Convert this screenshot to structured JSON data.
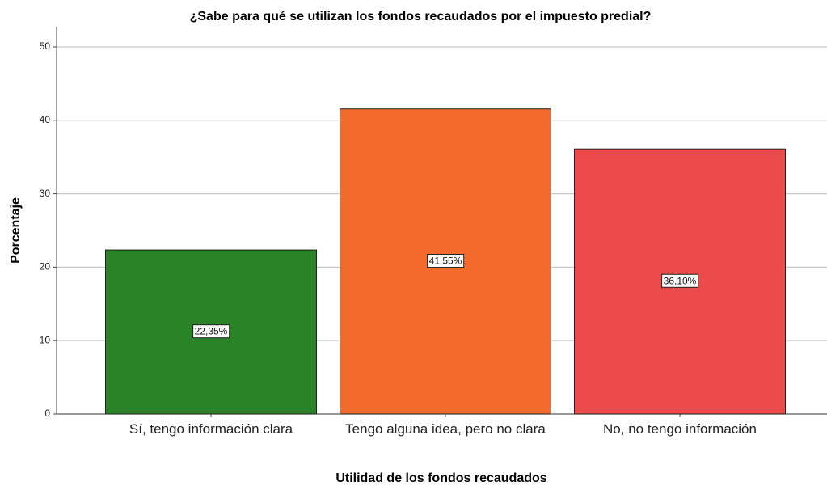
{
  "chart_data": {
    "type": "bar",
    "title": "¿Sabe para qué se utilizan los fondos recaudados por el impuesto predial?",
    "x_label": "Utilidad de los fondos recaudados",
    "y_label": "Porcentaje",
    "categories": [
      "Sí, tengo información clara",
      "Tengo alguna idea, pero no clara",
      "No, no tengo información"
    ],
    "values": [
      22.35,
      41.55,
      36.1
    ],
    "value_labels": [
      "22,35%",
      "41,55%",
      "36,10%"
    ],
    "colors": [
      "#2a8427",
      "#f26a2c",
      "#ec4a4b"
    ],
    "ylim": [
      0,
      50
    ],
    "yticks": [
      0,
      10,
      20,
      30,
      40,
      50
    ],
    "grid": true
  }
}
